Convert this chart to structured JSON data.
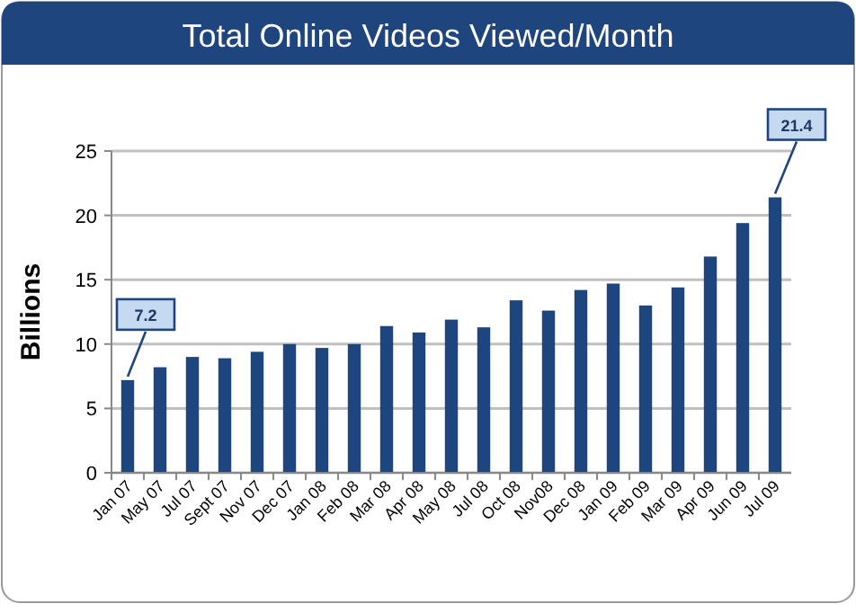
{
  "chart_data": {
    "type": "bar",
    "title": "Total Online Videos Viewed/Month",
    "ylabel": "Billions",
    "categories": [
      "Jan 07",
      "May 07",
      "Jul 07",
      "Sept 07",
      "Nov 07",
      "Dec 07",
      "Jan 08",
      "Feb 08",
      "Mar 08",
      "Apr 08",
      "May 08",
      "Jul 08",
      "Oct 08",
      "Nov08",
      "Dec 08",
      "Jan 09",
      "Feb 09",
      "Mar 09",
      "Apr 09",
      "Jun 09",
      "Jul 09"
    ],
    "values": [
      7.2,
      8.2,
      9.0,
      8.9,
      9.4,
      10.0,
      9.7,
      10.0,
      11.4,
      10.9,
      11.9,
      11.3,
      13.4,
      12.6,
      14.2,
      14.7,
      13.0,
      14.4,
      16.8,
      19.4,
      21.4
    ],
    "color": "#1f457e",
    "ylim": [
      0,
      25
    ],
    "yticks": [
      0,
      5,
      10,
      15,
      20,
      25
    ],
    "grid": "y",
    "annotations": [
      {
        "text": "7.2",
        "x": "Jan 07",
        "y": 7.2
      },
      {
        "text": "21.4",
        "x": "Jul 09",
        "y": 21.4
      }
    ]
  }
}
